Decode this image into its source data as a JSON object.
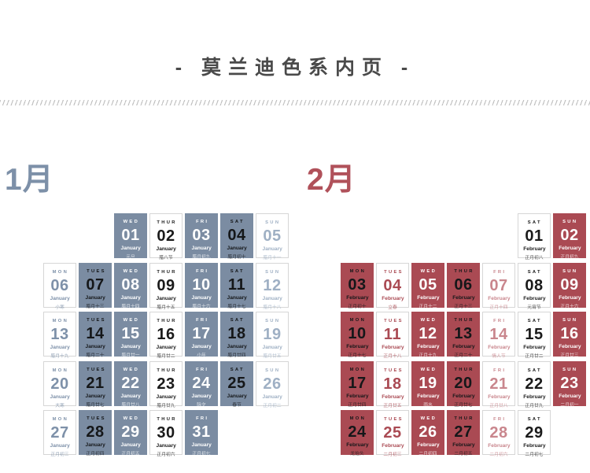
{
  "page": {
    "title": "- 莫兰迪色系内页 -"
  },
  "divider": {
    "type": "diagonal-dash-row",
    "color": "#c3c3c3"
  },
  "weekday_order": [
    "MON",
    "TUES",
    "WED",
    "THUR",
    "FRI",
    "SAT",
    "SUN"
  ],
  "months": [
    {
      "label": "1月",
      "month_name": "January",
      "label_color": "#7d90a8",
      "fill_color": "#7b8ca2",
      "lead_empty": 2,
      "column_styles": {
        "MON": {
          "bg": "white",
          "color": "#7e91a9"
        },
        "TUES": {
          "bg": "fill",
          "color": "#151719"
        },
        "WED": {
          "bg": "fill",
          "color": "#ffffff"
        },
        "THUR": {
          "bg": "white",
          "color": "#1a1a1a"
        },
        "FRI": {
          "bg": "fill",
          "color": "#ffffff"
        },
        "SAT": {
          "bg": "fill",
          "color": "#151719"
        },
        "SUN": {
          "bg": "white",
          "color": "#9fb0c4"
        }
      },
      "days": [
        {
          "num": "01",
          "weekday": "WED",
          "lunar": "元旦"
        },
        {
          "num": "02",
          "weekday": "THUR",
          "lunar": "腊八节"
        },
        {
          "num": "03",
          "weekday": "FRI",
          "lunar": "腊月初九"
        },
        {
          "num": "04",
          "weekday": "SAT",
          "lunar": "腊月初十"
        },
        {
          "num": "05",
          "weekday": "SUN",
          "lunar": "腊月十一"
        },
        {
          "num": "06",
          "weekday": "MON",
          "lunar": "小寒"
        },
        {
          "num": "07",
          "weekday": "TUES",
          "lunar": "腊月十三"
        },
        {
          "num": "08",
          "weekday": "WED",
          "lunar": "腊月十四"
        },
        {
          "num": "09",
          "weekday": "THUR",
          "lunar": "腊月十五"
        },
        {
          "num": "10",
          "weekday": "FRI",
          "lunar": "腊月十六"
        },
        {
          "num": "11",
          "weekday": "SAT",
          "lunar": "腊月十七"
        },
        {
          "num": "12",
          "weekday": "SUN",
          "lunar": "腊月十八"
        },
        {
          "num": "13",
          "weekday": "MON",
          "lunar": "腊月十九"
        },
        {
          "num": "14",
          "weekday": "TUES",
          "lunar": "腊月二十"
        },
        {
          "num": "15",
          "weekday": "WED",
          "lunar": "腊月廿一"
        },
        {
          "num": "16",
          "weekday": "THUR",
          "lunar": "腊月廿二"
        },
        {
          "num": "17",
          "weekday": "FRI",
          "lunar": "小年"
        },
        {
          "num": "18",
          "weekday": "SAT",
          "lunar": "腊月廿四"
        },
        {
          "num": "19",
          "weekday": "SUN",
          "lunar": "腊月廿五"
        },
        {
          "num": "20",
          "weekday": "MON",
          "lunar": "大寒"
        },
        {
          "num": "21",
          "weekday": "TUES",
          "lunar": "腊月廿七"
        },
        {
          "num": "22",
          "weekday": "WED",
          "lunar": "腊月廿八"
        },
        {
          "num": "23",
          "weekday": "THUR",
          "lunar": "腊月廿九"
        },
        {
          "num": "24",
          "weekday": "FRI",
          "lunar": "除夕"
        },
        {
          "num": "25",
          "weekday": "SAT",
          "lunar": "春节"
        },
        {
          "num": "26",
          "weekday": "SUN",
          "lunar": "正月初二"
        },
        {
          "num": "27",
          "weekday": "MON",
          "lunar": "正月初三"
        },
        {
          "num": "28",
          "weekday": "TUES",
          "lunar": "正月初四"
        },
        {
          "num": "29",
          "weekday": "WED",
          "lunar": "正月初五"
        },
        {
          "num": "30",
          "weekday": "THUR",
          "lunar": "正月初六"
        },
        {
          "num": "31",
          "weekday": "FRI",
          "lunar": "正月初七"
        }
      ]
    },
    {
      "label": "2月",
      "month_name": "February",
      "label_color": "#b0515a",
      "fill_color": "#aa4a53",
      "lead_empty": 5,
      "column_styles": {
        "MON": {
          "bg": "fill",
          "color": "#151719"
        },
        "TUES": {
          "bg": "white",
          "color": "#aa4a53"
        },
        "WED": {
          "bg": "fill",
          "color": "#ffffff"
        },
        "THUR": {
          "bg": "fill",
          "color": "#151719"
        },
        "FRI": {
          "bg": "white",
          "color": "#c9868d"
        },
        "SAT": {
          "bg": "white",
          "color": "#1a1a1a"
        },
        "SUN": {
          "bg": "fill",
          "color": "#ffffff"
        }
      },
      "days": [
        {
          "num": "01",
          "weekday": "SAT",
          "lunar": "正月初八"
        },
        {
          "num": "02",
          "weekday": "SUN",
          "lunar": "正月初九"
        },
        {
          "num": "03",
          "weekday": "MON",
          "lunar": "正月初十"
        },
        {
          "num": "04",
          "weekday": "TUES",
          "lunar": "立春"
        },
        {
          "num": "05",
          "weekday": "WED",
          "lunar": "正月十二"
        },
        {
          "num": "06",
          "weekday": "THUR",
          "lunar": "正月十三"
        },
        {
          "num": "07",
          "weekday": "FRI",
          "lunar": "正月十四"
        },
        {
          "num": "08",
          "weekday": "SAT",
          "lunar": "元宵节"
        },
        {
          "num": "09",
          "weekday": "SUN",
          "lunar": "正月十六"
        },
        {
          "num": "10",
          "weekday": "MON",
          "lunar": "正月十七"
        },
        {
          "num": "11",
          "weekday": "TUES",
          "lunar": "正月十八"
        },
        {
          "num": "12",
          "weekday": "WED",
          "lunar": "正月十九"
        },
        {
          "num": "13",
          "weekday": "THUR",
          "lunar": "正月二十"
        },
        {
          "num": "14",
          "weekday": "FRI",
          "lunar": "情人节"
        },
        {
          "num": "15",
          "weekday": "SAT",
          "lunar": "正月廿二"
        },
        {
          "num": "16",
          "weekday": "SUN",
          "lunar": "正月廿三"
        },
        {
          "num": "17",
          "weekday": "MON",
          "lunar": "正月廿四"
        },
        {
          "num": "18",
          "weekday": "TUES",
          "lunar": "正月廿五"
        },
        {
          "num": "19",
          "weekday": "WED",
          "lunar": "雨水"
        },
        {
          "num": "20",
          "weekday": "THUR",
          "lunar": "正月廿七"
        },
        {
          "num": "21",
          "weekday": "FRI",
          "lunar": "正月廿八"
        },
        {
          "num": "22",
          "weekday": "SAT",
          "lunar": "正月廿九"
        },
        {
          "num": "23",
          "weekday": "SUN",
          "lunar": "二月初一"
        },
        {
          "num": "24",
          "weekday": "MON",
          "lunar": "龙抬头"
        },
        {
          "num": "25",
          "weekday": "TUES",
          "lunar": "二月初三"
        },
        {
          "num": "26",
          "weekday": "WED",
          "lunar": "二月初四"
        },
        {
          "num": "27",
          "weekday": "THUR",
          "lunar": "二月初五"
        },
        {
          "num": "28",
          "weekday": "FRI",
          "lunar": "二月初六"
        },
        {
          "num": "29",
          "weekday": "SAT",
          "lunar": "二月初七"
        }
      ]
    }
  ]
}
